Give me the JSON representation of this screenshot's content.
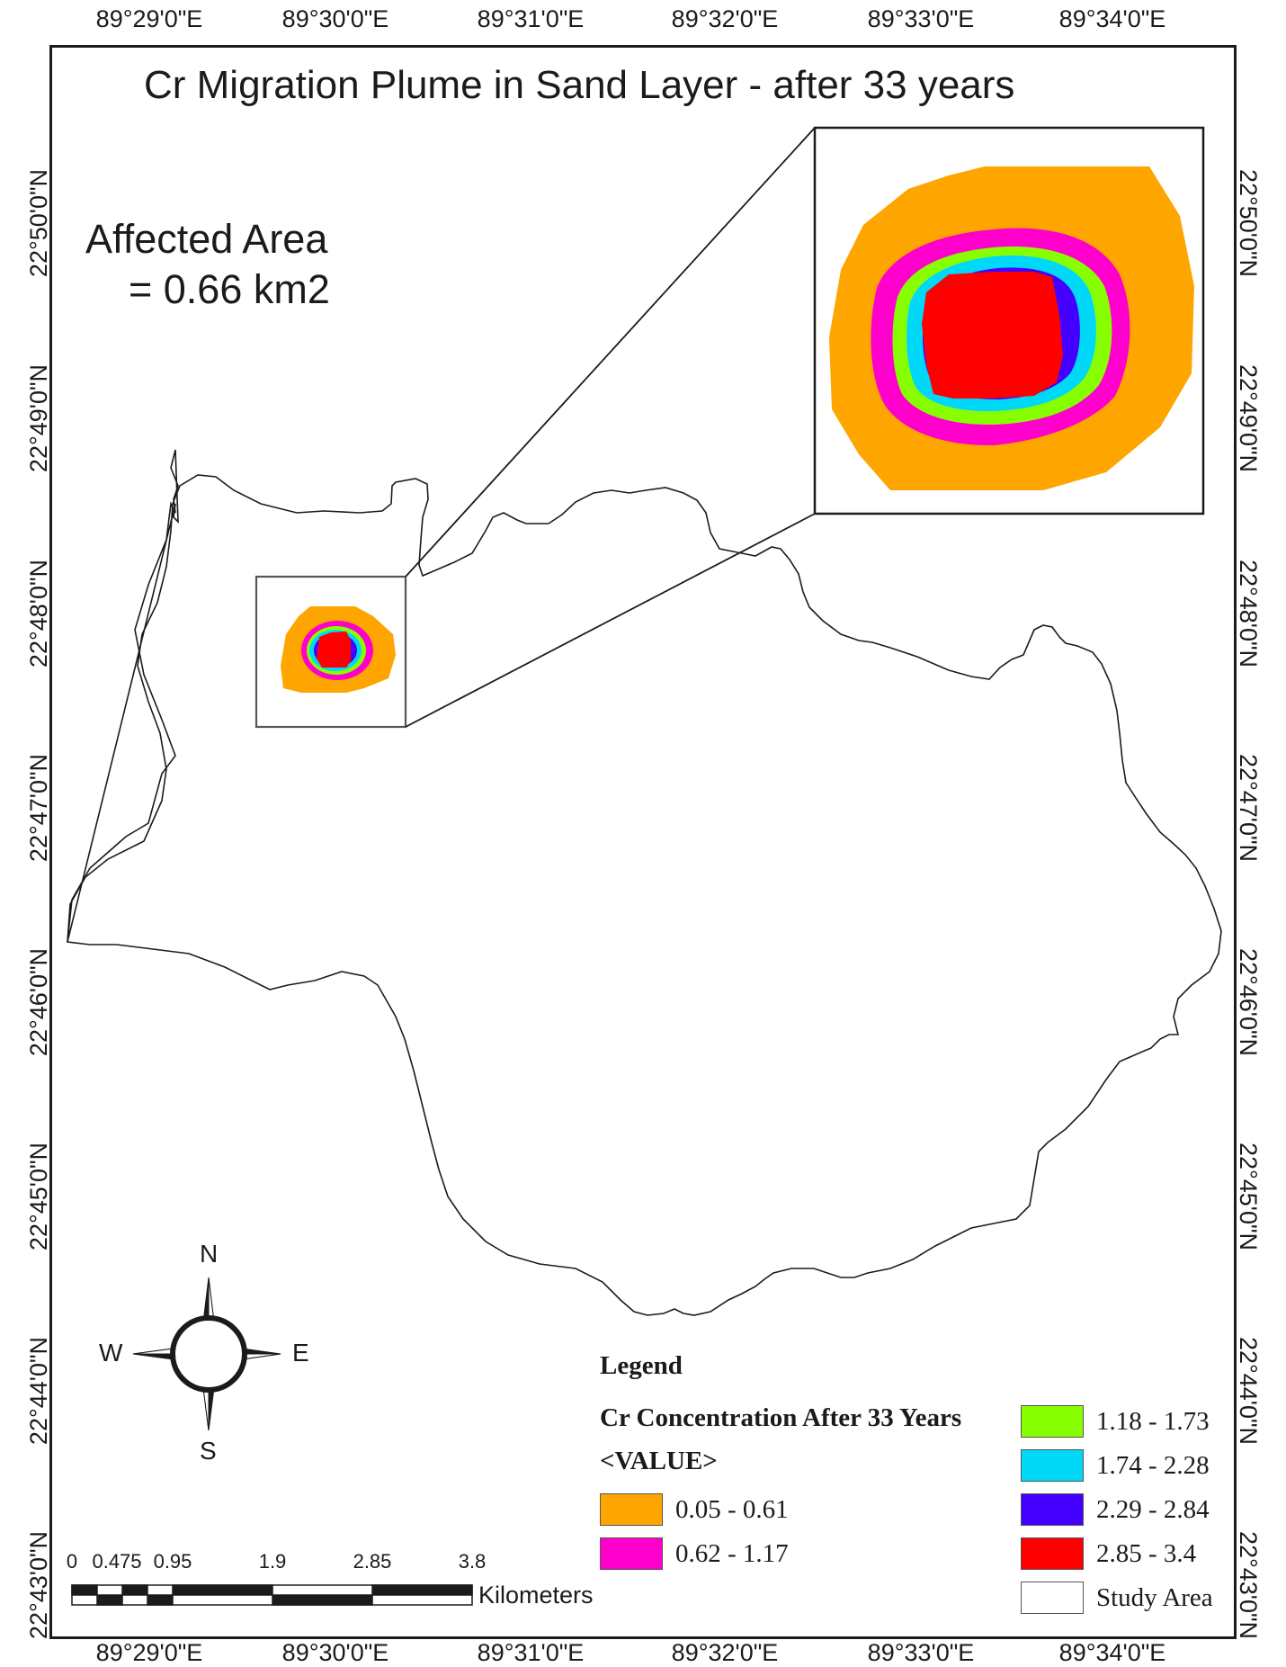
{
  "title": "Cr Migration Plume in Sand Layer - after 33 years",
  "affected_area": {
    "line1": "Affected Area",
    "line2": "= 0.66 km2"
  },
  "graticule": {
    "longitudes": [
      "89°29'0\"E",
      "89°30'0\"E",
      "89°31'0\"E",
      "89°32'0\"E",
      "89°33'0\"E",
      "89°34'0\"E"
    ],
    "latitudes": [
      "22°50'0\"N",
      "22°49'0\"N",
      "22°48'0\"N",
      "22°47'0\"N",
      "22°46'0\"N",
      "22°45'0\"N",
      "22°44'0\"N",
      "22°43'0\"N"
    ]
  },
  "legend": {
    "heading": "Legend",
    "layer_name": "Cr Concentration After 33 Years",
    "field": "<VALUE>",
    "classes": [
      {
        "label": "0.05 - 0.61",
        "color": "#FFA500"
      },
      {
        "label": "0.62 - 1.17",
        "color": "#FF00CC"
      },
      {
        "label": "1.18 - 1.73",
        "color": "#88FF00"
      },
      {
        "label": "1.74 - 2.28",
        "color": "#00D8F8"
      },
      {
        "label": "2.29 - 2.84",
        "color": "#4400FF"
      },
      {
        "label": "2.85 - 3.4",
        "color": "#FF0000"
      }
    ],
    "study_area": {
      "label": "Study Area",
      "color": "#FFFFFF"
    }
  },
  "scale_bar": {
    "labels": [
      "0",
      "0.475",
      "0.95",
      "1.9",
      "2.85",
      "3.8"
    ],
    "units": "Kilometers"
  },
  "compass": {
    "n": "N",
    "s": "S",
    "e": "E",
    "w": "W"
  }
}
